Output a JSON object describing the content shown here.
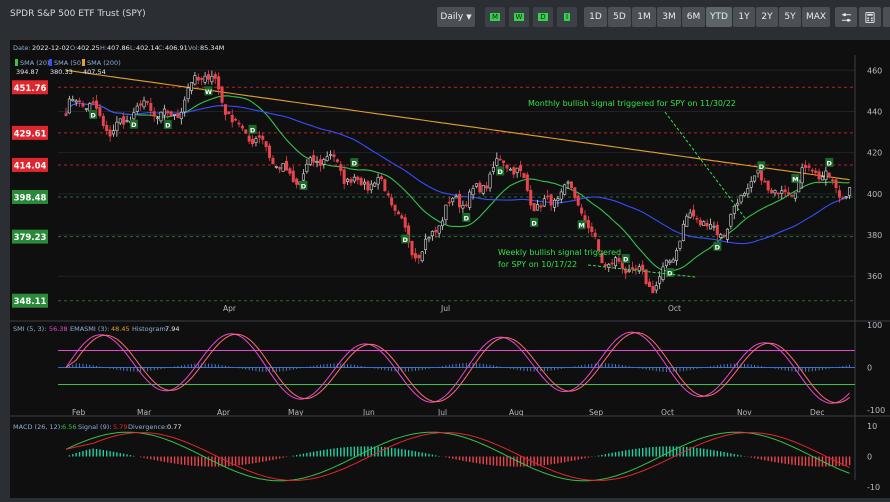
{
  "header": {
    "title": "SPDR S&P 500 ETF Trust (SPY)",
    "interval": "Daily",
    "signal_buttons": [
      "M",
      "W",
      "D",
      "I"
    ],
    "ranges": [
      "1D",
      "5D",
      "1M",
      "3M",
      "6M",
      "YTD",
      "1Y",
      "2Y",
      "5Y",
      "MAX"
    ],
    "active_range": "YTD",
    "tool_icons": [
      "settings-icon",
      "calculator-icon",
      "fullscreen-icon"
    ]
  },
  "info_line": {
    "date_label": "Date:",
    "date": "2022-12-02",
    "o_label": "O:",
    "open": "402.25",
    "h_label": "H:",
    "high": "407.86",
    "l_label": "L:",
    "low": "402.14",
    "c_label": "C:",
    "close": "406.91",
    "vol_label": "Vol:",
    "volume": "85.34M"
  },
  "sma_legend": [
    {
      "label": "SMA (20)",
      "value": "394.87",
      "color": "#35c24c"
    },
    {
      "label": "SMA (50)",
      "value": "380.33",
      "color": "#3a4cff"
    },
    {
      "label": "SMA (200)",
      "value": "407.54",
      "color": "#e3a12c"
    }
  ],
  "levels": [
    {
      "value": "451.76",
      "color": "#e0262e"
    },
    {
      "value": "429.61",
      "color": "#e0262e"
    },
    {
      "value": "414.04",
      "color": "#e0262e"
    },
    {
      "value": "398.48",
      "color": "#2a8a3a"
    },
    {
      "value": "379.23",
      "color": "#2a8a3a"
    },
    {
      "value": "348.11",
      "color": "#2a8a3a"
    }
  ],
  "annotations": {
    "monthly": "Monthly bullish signal triggered for  SPY on 11/30/22",
    "weekly_line1": "Weekly bullish  signal triggered",
    "weekly_line2": "for SPY  on 10/17/22"
  },
  "smi_legend": {
    "label": "SMI (5, 3):",
    "smi": "56.38",
    "ema_label": "EMASMI (3):",
    "ema": "48.45",
    "hist_label": "Histogram:",
    "hist": "7.94"
  },
  "macd_legend": {
    "label": "MACD (26, 12):",
    "macd": "6.56",
    "signal_label": "Signal (9):",
    "signal": "5.79",
    "div_label": "Divergence:",
    "div": "0.77"
  },
  "colors": {
    "up": "#1fd1a0",
    "down": "#e8454d",
    "smi": "#e24ad0",
    "ema_smi": "#ff6b6b",
    "macd": "#35c24c",
    "macd_signal": "#e0262e"
  },
  "chart_data": {
    "type": "candlestick",
    "title": "SPDR S&P 500 ETF Trust (SPY)",
    "price_axis_ticks": [
      360,
      380,
      400,
      420,
      440,
      460
    ],
    "price_range": [
      347,
      465
    ],
    "smi_axis_ticks": [
      -100,
      0,
      100
    ],
    "macd_axis_ticks": [
      -10,
      0,
      10
    ],
    "upper_x_ticks": [
      "Apr",
      "Jul",
      "Oct"
    ],
    "lower_x_ticks": [
      "Feb",
      "Mar",
      "Apr",
      "May",
      "Jun",
      "Jul",
      "Aug",
      "Sep",
      "Oct",
      "Nov",
      "Dec"
    ],
    "close_path_monthly": [
      {
        "month": "Jan",
        "close": 440
      },
      {
        "month": "Feb",
        "close": 436
      },
      {
        "month": "Mar",
        "close": 452
      },
      {
        "month": "Apr",
        "close": 413
      },
      {
        "month": "May",
        "close": 412
      },
      {
        "month": "Jun",
        "close": 378
      },
      {
        "month": "Jul",
        "close": 411
      },
      {
        "month": "Aug",
        "close": 396
      },
      {
        "month": "Sep",
        "close": 357
      },
      {
        "month": "Oct",
        "close": 386
      },
      {
        "month": "Nov",
        "close": 406
      },
      {
        "month": "Dec",
        "close": 407
      }
    ]
  }
}
